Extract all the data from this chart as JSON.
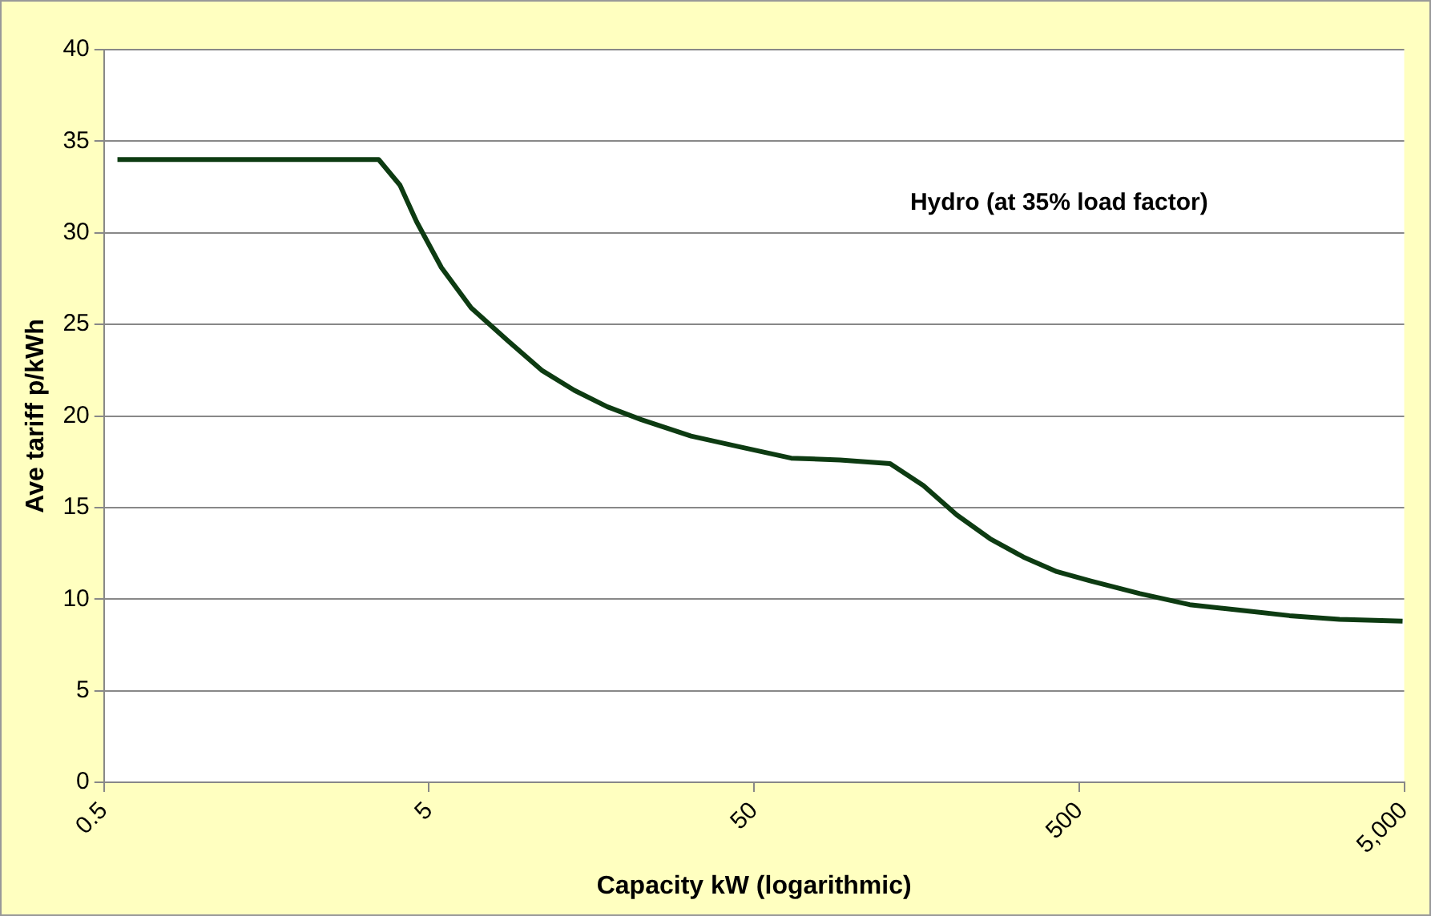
{
  "chart_data": {
    "type": "line",
    "xlabel": "Capacity kW (logarithmic)",
    "ylabel": "Ave tariff p/kWh",
    "annotations": [
      "Hydro (at 35% load factor)"
    ],
    "log": "x",
    "grid": "y",
    "legend": false,
    "marker": "none",
    "line_style": "solid",
    "xlim": [
      0.5,
      5000
    ],
    "xticks": [
      0.5,
      5,
      50,
      500,
      {
        "value": 5000,
        "label": "5,000"
      }
    ],
    "ylim": [
      0,
      40
    ],
    "yticks": [
      0,
      5,
      10,
      15,
      20,
      25,
      30,
      35,
      40
    ],
    "series": [
      {
        "color": "#0d3b12",
        "x": [
          0.55,
          3.5,
          4.07,
          4.58,
          5.46,
          6.74,
          8.75,
          11.1,
          14,
          17.7,
          22.5,
          32,
          45.5,
          65,
          92,
          131,
          166,
          210,
          266,
          337,
          427,
          540,
          769,
          1094,
          1559,
          2218,
          3162,
          4943
        ],
        "values": [
          34,
          34,
          32.6,
          30.6,
          28.1,
          25.9,
          24.1,
          22.5,
          21.4,
          20.5,
          19.8,
          18.9,
          18.3,
          17.7,
          17.6,
          17.4,
          16.2,
          14.6,
          13.3,
          12.3,
          11.5,
          11,
          10.3,
          9.7,
          9.4,
          9.1,
          8.9,
          8.8
        ]
      }
    ]
  }
}
